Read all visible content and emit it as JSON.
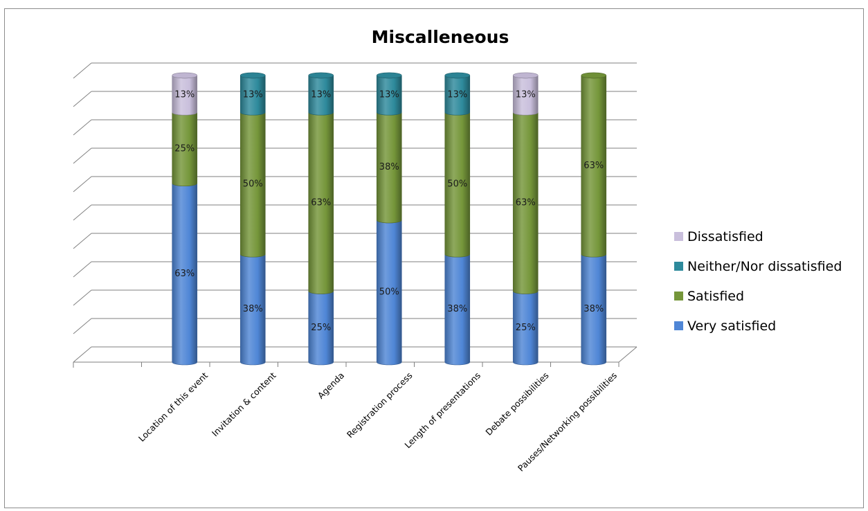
{
  "chart_data": {
    "type": "bar",
    "stacked": true,
    "three_d": true,
    "title": "Miscalleneous",
    "xlabel": "",
    "ylabel": "",
    "ylim": [
      0,
      1
    ],
    "grid": true,
    "legend_position": "right",
    "categories": [
      "",
      "Location of this event",
      "Invitation & content",
      "Agenda",
      "Registration process",
      "Length of presentations",
      "Debate possibilities",
      "Pauses/Networking possibilities"
    ],
    "series": [
      {
        "name": "Very satisfied",
        "color": "#4f86d6",
        "values": [
          null,
          0.63,
          0.38,
          0.25,
          0.5,
          0.38,
          0.25,
          0.38
        ],
        "labels": [
          "",
          "63%",
          "38%",
          "25%",
          "50%",
          "38%",
          "25%",
          "38%"
        ]
      },
      {
        "name": "Satisfied",
        "color": "#75963a",
        "values": [
          null,
          0.25,
          0.5,
          0.63,
          0.38,
          0.5,
          0.63,
          0.63
        ],
        "labels": [
          "",
          "25%",
          "50%",
          "63%",
          "38%",
          "50%",
          "63%",
          "63%"
        ]
      },
      {
        "name": "Neither/Nor dissatisfied",
        "color": "#2e8a9c",
        "values": [
          null,
          0,
          0.13,
          0.13,
          0.13,
          0.13,
          0,
          0
        ],
        "labels": [
          "",
          "",
          "13%",
          "13%",
          "13%",
          "13%",
          "",
          ""
        ]
      },
      {
        "name": "Dissatisfied",
        "color": "#c9bfdc",
        "values": [
          null,
          0.13,
          0,
          0,
          0,
          0,
          0.13,
          0
        ],
        "labels": [
          "",
          "13%",
          "",
          "",
          "",
          "",
          "13%",
          ""
        ]
      }
    ],
    "legend_order": [
      "Dissatisfied",
      "Neither/Nor dissatisfied",
      "Satisfied",
      "Very satisfied"
    ]
  }
}
